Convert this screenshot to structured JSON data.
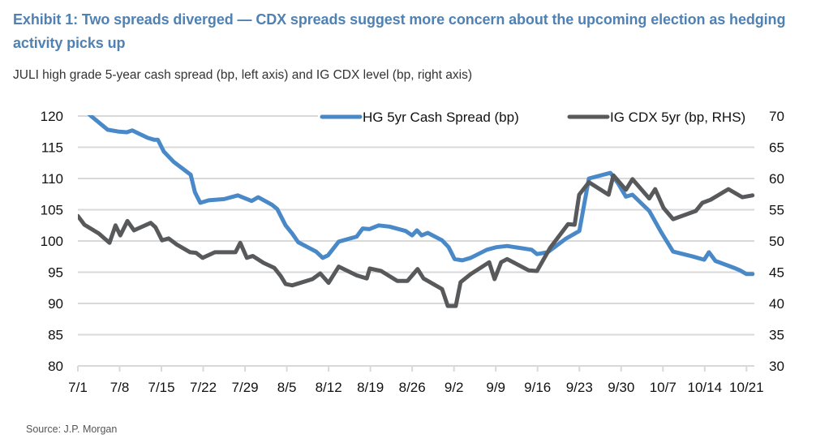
{
  "header": {
    "title": "Exhibit 1: Two spreads diverged — CDX spreads suggest more concern about the upcoming election as hedging activity picks up",
    "subtitle": "JULI high grade 5-year cash spread (bp, left axis) and IG CDX level (bp, right axis)"
  },
  "footer": {
    "source": "Source: J.P. Morgan"
  },
  "colors": {
    "hg_cash": "#4a89c8",
    "ig_cdx": "#58595b",
    "grid": "#d9d9d9",
    "title": "#4f81b3"
  },
  "chart_data": {
    "type": "line",
    "title": "Two spreads diverged — CDX spreads suggest more concern about the upcoming election as hedging activity picks up",
    "xlabel": "",
    "ylabel": "HG 5yr Cash Spread (bp)",
    "y2label": "IG CDX 5yr (bp, RHS)",
    "ylim": [
      80,
      120
    ],
    "y2lim": [
      30,
      70
    ],
    "yticks": [
      "120",
      "115",
      "110",
      "105",
      "100",
      "95",
      "90",
      "85",
      "80"
    ],
    "y2ticks": [
      "70",
      "65",
      "60",
      "55",
      "50",
      "45",
      "40",
      "35",
      "30"
    ],
    "xticks": [
      "7/1",
      "7/8",
      "7/15",
      "7/22",
      "7/29",
      "8/5",
      "8/12",
      "8/19",
      "8/26",
      "9/2",
      "9/9",
      "9/16",
      "9/23",
      "9/30",
      "10/7",
      "10/14",
      "10/21"
    ],
    "x_unit": "days since 7/1",
    "xlim": [
      0,
      113
    ],
    "grid": true,
    "legend_position": "top",
    "series": [
      {
        "name": "HG 5yr Cash Spread (bp)",
        "axis": "left",
        "color": "#4a89c8",
        "points": [
          [
            0,
            122.0
          ],
          [
            2.2,
            120.0
          ],
          [
            5.0,
            117.8
          ],
          [
            6.9,
            117.5
          ],
          [
            8.2,
            117.4
          ],
          [
            9.1,
            117.7
          ],
          [
            11.7,
            116.5
          ],
          [
            12.8,
            116.2
          ],
          [
            13.4,
            116.2
          ],
          [
            14.4,
            114.3
          ],
          [
            16.0,
            112.7
          ],
          [
            18.9,
            110.6
          ],
          [
            19.6,
            107.8
          ],
          [
            20.5,
            106.1
          ],
          [
            21.9,
            106.5
          ],
          [
            24.5,
            106.7
          ],
          [
            26.8,
            107.3
          ],
          [
            29.1,
            106.4
          ],
          [
            30.2,
            107.0
          ],
          [
            32.5,
            105.8
          ],
          [
            33.4,
            105.1
          ],
          [
            34.8,
            102.5
          ],
          [
            35.9,
            101.2
          ],
          [
            36.9,
            99.8
          ],
          [
            39.9,
            98.3
          ],
          [
            41.0,
            97.3
          ],
          [
            41.9,
            97.7
          ],
          [
            43.7,
            99.9
          ],
          [
            46.7,
            100.7
          ],
          [
            47.7,
            102.0
          ],
          [
            48.8,
            101.9
          ],
          [
            50.4,
            102.5
          ],
          [
            52.2,
            102.3
          ],
          [
            54.9,
            101.6
          ],
          [
            55.98,
            100.9
          ],
          [
            56.8,
            101.7
          ],
          [
            57.6,
            100.9
          ],
          [
            58.6,
            101.3
          ],
          [
            61.0,
            100.1
          ],
          [
            62.1,
            99.0
          ],
          [
            63.1,
            97.1
          ],
          [
            64.4,
            96.9
          ],
          [
            65.8,
            97.3
          ],
          [
            68.5,
            98.6
          ],
          [
            70.1,
            99.0
          ],
          [
            71.9,
            99.2
          ],
          [
            76.0,
            98.6
          ],
          [
            76.9,
            97.9
          ],
          [
            78.7,
            98.2
          ],
          [
            81.8,
            100.4
          ],
          [
            84.0,
            101.6
          ],
          [
            85.6,
            110.0
          ],
          [
            89.2,
            110.9
          ],
          [
            90.5,
            109.2
          ],
          [
            91.8,
            107.1
          ],
          [
            92.9,
            107.4
          ],
          [
            95.7,
            104.8
          ],
          [
            97.7,
            101.4
          ],
          [
            99.7,
            98.3
          ],
          [
            103.1,
            97.5
          ],
          [
            104.9,
            97.0
          ],
          [
            105.7,
            98.2
          ],
          [
            106.8,
            96.8
          ],
          [
            109.9,
            95.7
          ],
          [
            110.9,
            95.3
          ],
          [
            112.0,
            94.7
          ],
          [
            113.0,
            94.7
          ]
        ]
      },
      {
        "name": "IG CDX 5yr (bp, RHS)",
        "axis": "right",
        "color": "#58595b",
        "points": [
          [
            0,
            54.0
          ],
          [
            1.1,
            52.6
          ],
          [
            3.5,
            51.2
          ],
          [
            5.3,
            49.7
          ],
          [
            6.3,
            52.5
          ],
          [
            7.1,
            50.9
          ],
          [
            8.3,
            53.2
          ],
          [
            9.4,
            51.7
          ],
          [
            12.2,
            52.9
          ],
          [
            13.0,
            52.2
          ],
          [
            14.1,
            50.1
          ],
          [
            15.2,
            50.4
          ],
          [
            16.6,
            49.4
          ],
          [
            18.8,
            48.2
          ],
          [
            19.8,
            48.1
          ],
          [
            20.9,
            47.3
          ],
          [
            22.95,
            48.2
          ],
          [
            26.4,
            48.2
          ],
          [
            27.2,
            49.7
          ],
          [
            28.3,
            47.3
          ],
          [
            29.3,
            47.6
          ],
          [
            31.1,
            46.5
          ],
          [
            32.9,
            45.7
          ],
          [
            33.97,
            44.4
          ],
          [
            34.8,
            43.1
          ],
          [
            35.9,
            42.9
          ],
          [
            39.3,
            43.9
          ],
          [
            40.6,
            44.8
          ],
          [
            42.0,
            43.3
          ],
          [
            43.7,
            45.9
          ],
          [
            46.7,
            44.5
          ],
          [
            48.4,
            44.0
          ],
          [
            48.9,
            45.6
          ],
          [
            50.8,
            45.2
          ],
          [
            53.5,
            43.6
          ],
          [
            55.2,
            43.6
          ],
          [
            56.9,
            45.5
          ],
          [
            57.9,
            44.0
          ],
          [
            61.0,
            42.3
          ],
          [
            61.96,
            39.6
          ],
          [
            63.3,
            39.6
          ],
          [
            64.1,
            43.4
          ],
          [
            65.8,
            44.7
          ],
          [
            68.9,
            46.6
          ],
          [
            69.8,
            43.9
          ],
          [
            70.9,
            46.6
          ],
          [
            71.9,
            47.1
          ],
          [
            75.5,
            45.3
          ],
          [
            76.9,
            45.2
          ],
          [
            79.1,
            48.9
          ],
          [
            82.1,
            52.7
          ],
          [
            83.2,
            52.6
          ],
          [
            83.97,
            57.4
          ],
          [
            85.6,
            59.4
          ],
          [
            88.9,
            57.4
          ],
          [
            89.7,
            60.5
          ],
          [
            91.8,
            58.2
          ],
          [
            92.9,
            59.9
          ],
          [
            95.7,
            56.8
          ],
          [
            96.7,
            58.3
          ],
          [
            98.1,
            55.3
          ],
          [
            99.7,
            53.5
          ],
          [
            103.5,
            54.8
          ],
          [
            104.6,
            56.1
          ],
          [
            105.98,
            56.6
          ],
          [
            108.97,
            58.3
          ],
          [
            111.3,
            57.0
          ],
          [
            113.0,
            57.3
          ]
        ]
      }
    ]
  }
}
